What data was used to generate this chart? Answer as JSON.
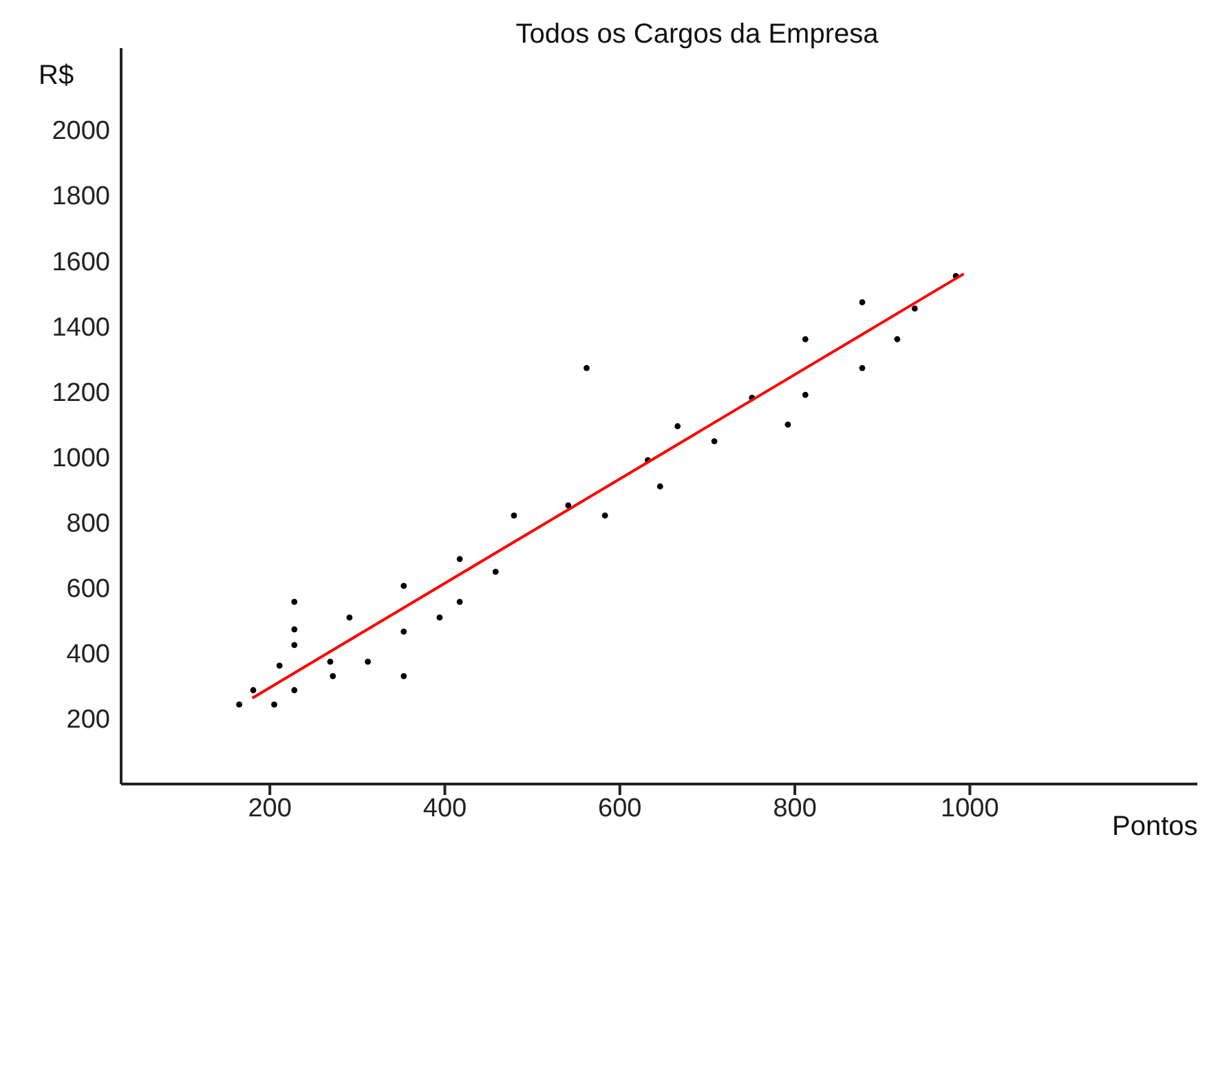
{
  "chart_data": {
    "type": "scatter",
    "title": "Todos os Cargos da Empresa",
    "xlabel": "Pontos",
    "ylabel": "R$",
    "xlim": [
      30,
      1260
    ],
    "xticks": [
      200,
      400,
      600,
      800,
      1000
    ],
    "ylim": [
      0,
      2250
    ],
    "yticks": [
      200,
      400,
      600,
      800,
      1000,
      1200,
      1400,
      1600,
      1800,
      2000
    ],
    "grid": false,
    "series": [
      {
        "type": "scatter",
        "color": "#000000",
        "marker": "circle",
        "x": [
          165,
          181,
          205,
          211,
          228,
          228,
          228,
          228,
          269,
          272,
          291,
          312,
          353,
          353,
          353,
          394,
          417,
          417,
          458,
          479,
          541,
          562,
          583,
          632,
          646,
          666,
          708,
          751,
          792,
          812,
          812,
          877,
          877,
          917,
          937,
          984
        ],
        "values": [
          243,
          287,
          243,
          362,
          557,
          473,
          425,
          287,
          374,
          330,
          509,
          374,
          606,
          466,
          330,
          509,
          688,
          557,
          649,
          821,
          852,
          1272,
          821,
          990,
          910,
          1094,
          1048,
          1181,
          1099,
          1360,
          1190,
          1473,
          1272,
          1360,
          1454,
          1553
        ]
      },
      {
        "type": "line",
        "color": "#ff0000",
        "marker": "none",
        "line_style": "solid",
        "x": [
          180,
          993
        ],
        "values": [
          263,
          1560
        ]
      }
    ]
  }
}
